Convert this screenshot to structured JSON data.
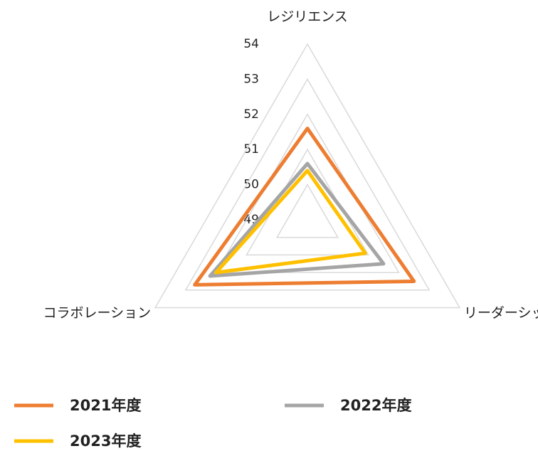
{
  "chart_data": {
    "type": "radar",
    "categories": [
      "レジリエンス",
      "リーダーシップ",
      "コラボレーション"
    ],
    "series": [
      {
        "name": "2021年度",
        "color": "#ed7d31",
        "values": [
          51.6,
          52.5,
          52.7
        ]
      },
      {
        "name": "2022年度",
        "color": "#a5a5a5",
        "values": [
          50.6,
          51.5,
          52.2
        ]
      },
      {
        "name": "2023年度",
        "color": "#ffc000",
        "values": [
          50.4,
          50.9,
          52.0
        ]
      }
    ],
    "ylim": [
      49,
      54
    ],
    "yticks": [
      49,
      50,
      51,
      52,
      53,
      54
    ],
    "grid": true
  }
}
